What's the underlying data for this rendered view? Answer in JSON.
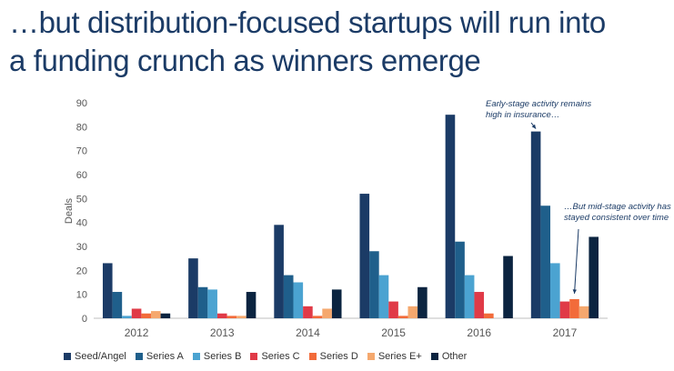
{
  "title_line1": "…but distribution-focused startups will run into",
  "title_line2": "a funding crunch as winners emerge",
  "chart_data": {
    "type": "bar",
    "categories": [
      "2012",
      "2013",
      "2014",
      "2015",
      "2016",
      "2017"
    ],
    "ylabel": "Deals",
    "xlabel": "",
    "ylim": [
      0,
      90
    ],
    "yticks": [
      0,
      10,
      20,
      30,
      40,
      50,
      60,
      70,
      80,
      90
    ],
    "grid": false,
    "legend_position": "bottom",
    "series": [
      {
        "name": "Seed/Angel",
        "color": "#1b3b66",
        "values": [
          23,
          25,
          39,
          52,
          85,
          78
        ]
      },
      {
        "name": "Series A",
        "color": "#1f5f8b",
        "values": [
          11,
          13,
          18,
          28,
          32,
          47
        ]
      },
      {
        "name": "Series B",
        "color": "#4ba3d1",
        "values": [
          1,
          12,
          15,
          18,
          18,
          23
        ]
      },
      {
        "name": "Series C",
        "color": "#e03a47",
        "values": [
          4,
          2,
          5,
          7,
          11,
          7
        ]
      },
      {
        "name": "Series D",
        "color": "#f26b3a",
        "values": [
          2,
          1,
          1,
          1,
          2,
          8
        ]
      },
      {
        "name": "Series E+",
        "color": "#f5a86e",
        "values": [
          3,
          1,
          4,
          5,
          0,
          5
        ]
      },
      {
        "name": "Other",
        "color": "#0b2440",
        "values": [
          2,
          11,
          12,
          13,
          26,
          34
        ]
      }
    ],
    "annotations": [
      {
        "lines": [
          "Early-stage activity remains",
          "high in insurance…"
        ],
        "category": "2017",
        "series": "Seed/Angel"
      },
      {
        "lines": [
          "…But mid-stage activity has",
          "stayed consistent over time"
        ],
        "category": "2017",
        "series": "Series D"
      }
    ]
  }
}
